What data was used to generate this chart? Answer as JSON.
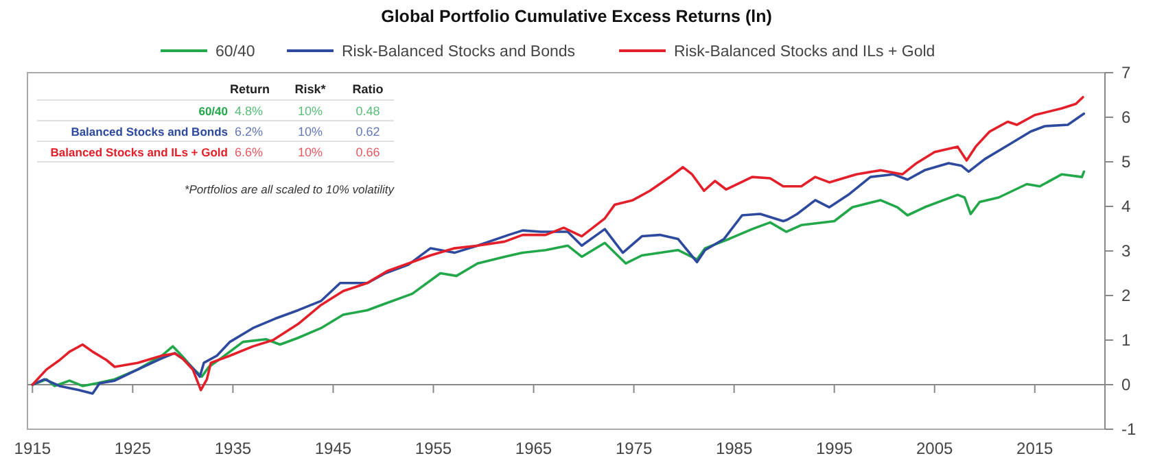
{
  "chart_data": {
    "type": "line",
    "title": "Global Portfolio Cumulative Excess Returns (ln)",
    "xlim": [
      1914.5,
      2022
    ],
    "xticks": [
      1915,
      1925,
      1935,
      1945,
      1955,
      1965,
      1975,
      1985,
      1995,
      2005,
      2015
    ],
    "ylim": [
      -1,
      7
    ],
    "yticks": [
      -1,
      0,
      1,
      2,
      3,
      4,
      5,
      6,
      7
    ],
    "legend": "top",
    "line_style": "solid",
    "marker": "none",
    "annotations": [
      "Return",
      "Risk*",
      "Ratio",
      "60/40",
      "4.8%",
      "10%",
      "0.48",
      "Balanced Stocks and Bonds",
      "6.2%",
      "10%",
      "0.62",
      "Balanced Stocks and ILs + Gold",
      "6.6%",
      "10%",
      "0.66",
      "*Portfolios are all scaled to 10% volatility"
    ],
    "series": [
      {
        "name": "60/40",
        "color": "#22a84a",
        "x": [
          1915,
          1916.4,
          1917.2,
          1918.7,
          1920,
          1921.4,
          1923.2,
          1925.5,
          1927.9,
          1929,
          1929.9,
          1931,
          1931.9,
          1932.6,
          1933.8,
          1936,
          1938.3,
          1939.7,
          1941.5,
          1943.8,
          1946,
          1948.4,
          1950.2,
          1952.9,
          1955.7,
          1957.3,
          1959.4,
          1962.1,
          1963.9,
          1966.2,
          1968.4,
          1969.8,
          1972.1,
          1974.2,
          1975.8,
          1979.4,
          1981.3,
          1982.1,
          1984.5,
          1986.8,
          1988.6,
          1990.2,
          1991.7,
          1995,
          1996.8,
          1999.6,
          2001.3,
          2002.3,
          2004,
          2007.3,
          2008,
          2008.6,
          2009.5,
          2011.4,
          2014.2,
          2015.5,
          2017.7,
          2019.7,
          2019.9
        ],
        "values": [
          0,
          0.12,
          -0.03,
          0.09,
          -0.03,
          0.03,
          0.12,
          0.34,
          0.65,
          0.86,
          0.65,
          0.37,
          0.18,
          0.4,
          0.59,
          0.96,
          1.02,
          0.9,
          1.05,
          1.27,
          1.57,
          1.67,
          1.82,
          2.04,
          2.5,
          2.44,
          2.72,
          2.87,
          2.96,
          3.02,
          3.12,
          2.87,
          3.18,
          2.72,
          2.9,
          3.02,
          2.81,
          3.06,
          3.27,
          3.49,
          3.64,
          3.43,
          3.58,
          3.67,
          3.98,
          4.14,
          3.98,
          3.8,
          3.98,
          4.26,
          4.2,
          3.83,
          4.1,
          4.2,
          4.5,
          4.45,
          4.72,
          4.66,
          4.78
        ]
      },
      {
        "name": "Risk-Balanced Stocks and Bonds",
        "color": "#2e4a9e",
        "x": [
          1915,
          1916.2,
          1917.7,
          1919.6,
          1921,
          1921.7,
          1923.2,
          1925.5,
          1927.9,
          1929.2,
          1930,
          1931,
          1931.7,
          1932.1,
          1933.4,
          1934.7,
          1937,
          1939.2,
          1941.5,
          1943.8,
          1945.7,
          1948.4,
          1950.2,
          1952.5,
          1954.7,
          1957.1,
          1959.4,
          1962.5,
          1963.9,
          1965.7,
          1968.4,
          1969.8,
          1972.1,
          1973.9,
          1975.8,
          1977.6,
          1979.4,
          1981.3,
          1982.1,
          1984,
          1985.8,
          1987.6,
          1989.9,
          1990.3,
          1991.3,
          1993.1,
          1994.5,
          1996.4,
          1998.6,
          2000.9,
          2002.3,
          2004,
          2006.4,
          2007.7,
          2008.4,
          2010,
          2012.3,
          2014.6,
          2016,
          2018.3,
          2019.9
        ],
        "values": [
          0,
          0.12,
          -0.03,
          -0.12,
          -0.2,
          0.03,
          0.09,
          0.34,
          0.59,
          0.71,
          0.58,
          0.37,
          0.18,
          0.49,
          0.65,
          0.96,
          1.27,
          1.48,
          1.67,
          1.88,
          2.28,
          2.28,
          2.5,
          2.69,
          3.06,
          2.96,
          3.12,
          3.36,
          3.46,
          3.43,
          3.43,
          3.12,
          3.49,
          2.96,
          3.33,
          3.36,
          3.27,
          2.75,
          3.02,
          3.27,
          3.8,
          3.83,
          3.67,
          3.7,
          3.83,
          4.14,
          3.98,
          4.26,
          4.66,
          4.72,
          4.6,
          4.81,
          4.97,
          4.91,
          4.78,
          5.06,
          5.37,
          5.68,
          5.8,
          5.83,
          6.08
        ]
      },
      {
        "name": "Risk-Balanced Stocks and ILs + Gold",
        "color": "#e3202a",
        "x": [
          1915,
          1916.4,
          1917.7,
          1918.7,
          1920,
          1921,
          1922.4,
          1923.2,
          1925.5,
          1927.9,
          1929.2,
          1930,
          1931,
          1931.8,
          1932.4,
          1932.8,
          1934.7,
          1937,
          1939,
          1941.5,
          1943.8,
          1946,
          1948.4,
          1950.4,
          1952.5,
          1954.7,
          1957.1,
          1959.4,
          1962.1,
          1963.9,
          1966.2,
          1968,
          1969.8,
          1972.1,
          1973.1,
          1974.9,
          1976.6,
          1978.6,
          1979.9,
          1980.8,
          1982,
          1983.1,
          1984.2,
          1986.8,
          1988.6,
          1989.9,
          1991.7,
          1993.1,
          1994.5,
          1997.2,
          1999.6,
          2001.8,
          2003.2,
          2005,
          2007.3,
          2008.2,
          2009.1,
          2010.5,
          2012.3,
          2013.2,
          2015,
          2017.7,
          2019.1,
          2019.8
        ],
        "values": [
          0,
          0.34,
          0.55,
          0.74,
          0.9,
          0.74,
          0.55,
          0.4,
          0.49,
          0.65,
          0.7,
          0.58,
          0.34,
          -0.12,
          0.12,
          0.49,
          0.65,
          0.86,
          1.0,
          1.36,
          1.79,
          2.1,
          2.28,
          2.55,
          2.72,
          2.9,
          3.06,
          3.12,
          3.21,
          3.36,
          3.36,
          3.52,
          3.33,
          3.73,
          4.04,
          4.14,
          4.35,
          4.66,
          4.88,
          4.72,
          4.35,
          4.57,
          4.38,
          4.66,
          4.63,
          4.45,
          4.45,
          4.66,
          4.54,
          4.72,
          4.81,
          4.72,
          4.97,
          5.22,
          5.34,
          5.03,
          5.34,
          5.68,
          5.9,
          5.83,
          6.05,
          6.2,
          6.3,
          6.45
        ]
      }
    ]
  }
}
